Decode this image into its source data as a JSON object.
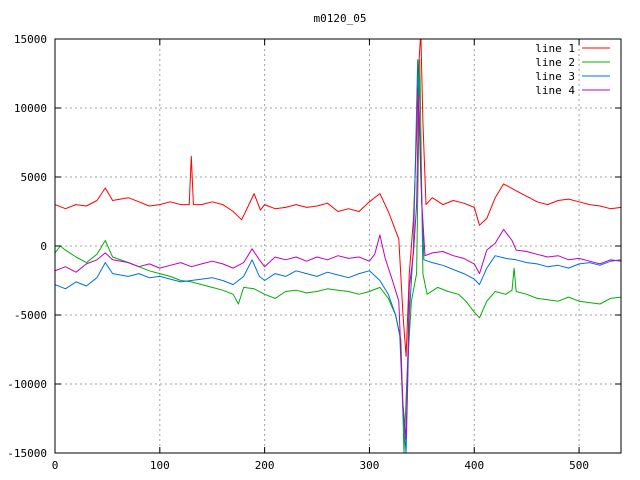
{
  "chart_data": {
    "type": "line",
    "title": "m0120_05",
    "xlabel": "",
    "ylabel": "",
    "xlim": [
      0,
      540
    ],
    "ylim": [
      -15000,
      15000
    ],
    "x_ticks": [
      0,
      100,
      200,
      300,
      400,
      500
    ],
    "y_ticks": [
      -15000,
      -10000,
      -5000,
      0,
      5000,
      10000,
      15000
    ],
    "grid": true,
    "legend_position": "top-right",
    "series": [
      {
        "name": "line 1",
        "color": "#ff0000",
        "points": [
          [
            0,
            3000
          ],
          [
            10,
            2700
          ],
          [
            20,
            3000
          ],
          [
            30,
            2900
          ],
          [
            40,
            3300
          ],
          [
            48,
            4200
          ],
          [
            55,
            3300
          ],
          [
            70,
            3500
          ],
          [
            80,
            3200
          ],
          [
            90,
            2900
          ],
          [
            100,
            3000
          ],
          [
            110,
            3200
          ],
          [
            120,
            3000
          ],
          [
            128,
            3000
          ],
          [
            130,
            6500
          ],
          [
            132,
            3000
          ],
          [
            140,
            3000
          ],
          [
            150,
            3200
          ],
          [
            160,
            3000
          ],
          [
            170,
            2500
          ],
          [
            178,
            1900
          ],
          [
            185,
            3000
          ],
          [
            190,
            3800
          ],
          [
            196,
            2600
          ],
          [
            200,
            3000
          ],
          [
            210,
            2700
          ],
          [
            220,
            2800
          ],
          [
            230,
            3000
          ],
          [
            240,
            2800
          ],
          [
            250,
            2900
          ],
          [
            260,
            3100
          ],
          [
            270,
            2500
          ],
          [
            280,
            2700
          ],
          [
            290,
            2500
          ],
          [
            300,
            3200
          ],
          [
            310,
            3800
          ],
          [
            318,
            2500
          ],
          [
            323,
            1500
          ],
          [
            328,
            500
          ],
          [
            332,
            -5000
          ],
          [
            335,
            -8000
          ],
          [
            338,
            -2000
          ],
          [
            342,
            2000
          ],
          [
            345,
            8000
          ],
          [
            347,
            13000
          ],
          [
            349,
            15500
          ],
          [
            351,
            9000
          ],
          [
            354,
            3000
          ],
          [
            360,
            3500
          ],
          [
            370,
            3000
          ],
          [
            380,
            3300
          ],
          [
            390,
            3100
          ],
          [
            400,
            2800
          ],
          [
            405,
            1500
          ],
          [
            412,
            2000
          ],
          [
            420,
            3500
          ],
          [
            428,
            4500
          ],
          [
            440,
            4000
          ],
          [
            450,
            3600
          ],
          [
            460,
            3200
          ],
          [
            470,
            3000
          ],
          [
            480,
            3300
          ],
          [
            490,
            3400
          ],
          [
            500,
            3200
          ],
          [
            510,
            3000
          ],
          [
            520,
            2900
          ],
          [
            530,
            2700
          ],
          [
            540,
            2800
          ]
        ]
      },
      {
        "name": "line 2",
        "color": "#00b000",
        "points": [
          [
            0,
            -500
          ],
          [
            5,
            0
          ],
          [
            10,
            -300
          ],
          [
            20,
            -800
          ],
          [
            30,
            -1200
          ],
          [
            40,
            -600
          ],
          [
            48,
            400
          ],
          [
            55,
            -800
          ],
          [
            70,
            -1200
          ],
          [
            80,
            -1500
          ],
          [
            90,
            -1800
          ],
          [
            100,
            -2000
          ],
          [
            110,
            -2200
          ],
          [
            120,
            -2500
          ],
          [
            130,
            -2600
          ],
          [
            140,
            -2800
          ],
          [
            150,
            -3000
          ],
          [
            160,
            -3200
          ],
          [
            170,
            -3500
          ],
          [
            175,
            -4200
          ],
          [
            180,
            -3000
          ],
          [
            190,
            -3100
          ],
          [
            200,
            -3500
          ],
          [
            210,
            -3800
          ],
          [
            220,
            -3300
          ],
          [
            230,
            -3200
          ],
          [
            240,
            -3400
          ],
          [
            250,
            -3300
          ],
          [
            260,
            -3100
          ],
          [
            270,
            -3200
          ],
          [
            280,
            -3300
          ],
          [
            290,
            -3500
          ],
          [
            300,
            -3300
          ],
          [
            310,
            -3000
          ],
          [
            318,
            -3800
          ],
          [
            325,
            -5000
          ],
          [
            330,
            -6800
          ],
          [
            333,
            -15000
          ],
          [
            336,
            -9000
          ],
          [
            340,
            -4000
          ],
          [
            345,
            -2000
          ],
          [
            348,
            13500
          ],
          [
            351,
            -2000
          ],
          [
            355,
            -3500
          ],
          [
            365,
            -3000
          ],
          [
            375,
            -3300
          ],
          [
            385,
            -3500
          ],
          [
            392,
            -4000
          ],
          [
            400,
            -4800
          ],
          [
            405,
            -5200
          ],
          [
            412,
            -4000
          ],
          [
            420,
            -3300
          ],
          [
            430,
            -3500
          ],
          [
            436,
            -3200
          ],
          [
            438,
            -1600
          ],
          [
            440,
            -3300
          ],
          [
            450,
            -3500
          ],
          [
            460,
            -3800
          ],
          [
            470,
            -3900
          ],
          [
            480,
            -4000
          ],
          [
            490,
            -3700
          ],
          [
            500,
            -4000
          ],
          [
            510,
            -4100
          ],
          [
            520,
            -4200
          ],
          [
            530,
            -3800
          ],
          [
            540,
            -3700
          ]
        ]
      },
      {
        "name": "line 3",
        "color": "#0070e0",
        "points": [
          [
            0,
            -2800
          ],
          [
            10,
            -3100
          ],
          [
            20,
            -2600
          ],
          [
            30,
            -2900
          ],
          [
            40,
            -2300
          ],
          [
            48,
            -1200
          ],
          [
            55,
            -2000
          ],
          [
            70,
            -2200
          ],
          [
            80,
            -2000
          ],
          [
            90,
            -2300
          ],
          [
            100,
            -2200
          ],
          [
            110,
            -2400
          ],
          [
            120,
            -2600
          ],
          [
            130,
            -2500
          ],
          [
            140,
            -2400
          ],
          [
            150,
            -2300
          ],
          [
            160,
            -2500
          ],
          [
            170,
            -2800
          ],
          [
            180,
            -2200
          ],
          [
            188,
            -1000
          ],
          [
            195,
            -2200
          ],
          [
            200,
            -2500
          ],
          [
            210,
            -2000
          ],
          [
            220,
            -2200
          ],
          [
            230,
            -1800
          ],
          [
            240,
            -2000
          ],
          [
            250,
            -2200
          ],
          [
            260,
            -1900
          ],
          [
            270,
            -2100
          ],
          [
            280,
            -2300
          ],
          [
            290,
            -2000
          ],
          [
            300,
            -1800
          ],
          [
            310,
            -2500
          ],
          [
            318,
            -3500
          ],
          [
            325,
            -5000
          ],
          [
            329,
            -6500
          ],
          [
            332,
            -12000
          ],
          [
            335,
            -15000
          ],
          [
            338,
            -5000
          ],
          [
            342,
            0
          ],
          [
            346,
            13500
          ],
          [
            349,
            5000
          ],
          [
            352,
            -1000
          ],
          [
            360,
            -1200
          ],
          [
            370,
            -1400
          ],
          [
            380,
            -1700
          ],
          [
            390,
            -2000
          ],
          [
            400,
            -2400
          ],
          [
            405,
            -2800
          ],
          [
            412,
            -1600
          ],
          [
            420,
            -700
          ],
          [
            430,
            -900
          ],
          [
            440,
            -1000
          ],
          [
            450,
            -1200
          ],
          [
            460,
            -1300
          ],
          [
            470,
            -1500
          ],
          [
            480,
            -1400
          ],
          [
            490,
            -1600
          ],
          [
            500,
            -1300
          ],
          [
            510,
            -1200
          ],
          [
            520,
            -1400
          ],
          [
            530,
            -1100
          ],
          [
            540,
            -1000
          ]
        ]
      },
      {
        "name": "line 4",
        "color": "#c000c0",
        "points": [
          [
            0,
            -1800
          ],
          [
            10,
            -1500
          ],
          [
            20,
            -1900
          ],
          [
            30,
            -1300
          ],
          [
            40,
            -1000
          ],
          [
            48,
            -500
          ],
          [
            55,
            -1000
          ],
          [
            70,
            -1200
          ],
          [
            80,
            -1500
          ],
          [
            90,
            -1300
          ],
          [
            100,
            -1600
          ],
          [
            110,
            -1400
          ],
          [
            120,
            -1200
          ],
          [
            130,
            -1500
          ],
          [
            140,
            -1300
          ],
          [
            150,
            -1100
          ],
          [
            160,
            -1300
          ],
          [
            170,
            -1600
          ],
          [
            180,
            -1200
          ],
          [
            188,
            -200
          ],
          [
            195,
            -1000
          ],
          [
            200,
            -1500
          ],
          [
            210,
            -800
          ],
          [
            220,
            -1000
          ],
          [
            230,
            -800
          ],
          [
            240,
            -1100
          ],
          [
            250,
            -800
          ],
          [
            260,
            -1000
          ],
          [
            270,
            -700
          ],
          [
            280,
            -900
          ],
          [
            290,
            -800
          ],
          [
            300,
            -1100
          ],
          [
            305,
            -600
          ],
          [
            310,
            800
          ],
          [
            315,
            -900
          ],
          [
            322,
            -2500
          ],
          [
            328,
            -4000
          ],
          [
            332,
            -11500
          ],
          [
            335,
            -14000
          ],
          [
            338,
            -3000
          ],
          [
            342,
            -500
          ],
          [
            345,
            3000
          ],
          [
            347,
            11000
          ],
          [
            350,
            3000
          ],
          [
            353,
            -700
          ],
          [
            360,
            -500
          ],
          [
            370,
            -400
          ],
          [
            380,
            -700
          ],
          [
            390,
            -900
          ],
          [
            400,
            -1300
          ],
          [
            405,
            -2000
          ],
          [
            412,
            -300
          ],
          [
            420,
            200
          ],
          [
            428,
            1200
          ],
          [
            436,
            400
          ],
          [
            440,
            -300
          ],
          [
            450,
            -400
          ],
          [
            460,
            -600
          ],
          [
            470,
            -800
          ],
          [
            480,
            -700
          ],
          [
            490,
            -1000
          ],
          [
            500,
            -900
          ],
          [
            510,
            -1100
          ],
          [
            520,
            -1300
          ],
          [
            530,
            -1000
          ],
          [
            540,
            -1100
          ]
        ]
      }
    ]
  }
}
